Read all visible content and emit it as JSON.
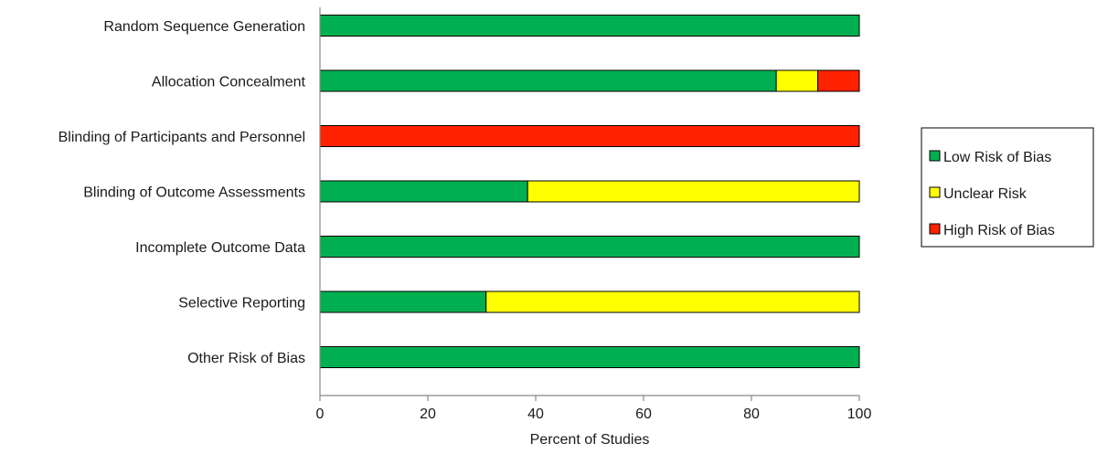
{
  "chart_data": {
    "type": "bar",
    "orientation": "horizontal",
    "stacked": true,
    "categories": [
      "Random Sequence Generation",
      "Allocation Concealment",
      "Blinding of Participants and Personnel",
      "Blinding of Outcome Assessments",
      "Incomplete Outcome Data",
      "Selective Reporting",
      "Other Risk of Bias"
    ],
    "series": [
      {
        "name": "Low Risk of Bias",
        "color": "#00b050",
        "values": [
          100,
          84.6,
          0,
          38.5,
          100,
          30.8,
          100
        ]
      },
      {
        "name": "Unclear Risk",
        "color": "#ffff00",
        "values": [
          0,
          7.7,
          0,
          61.5,
          0,
          69.2,
          0
        ]
      },
      {
        "name": "High Risk of Bias",
        "color": "#ff2200",
        "values": [
          0,
          7.7,
          100,
          0,
          0,
          0,
          0
        ]
      }
    ],
    "xlabel": "Percent of Studies",
    "ylabel": "",
    "xlim": [
      0,
      100
    ],
    "xticks": [
      0,
      20,
      40,
      60,
      80,
      100
    ],
    "grid": false,
    "legend_position": "right"
  }
}
